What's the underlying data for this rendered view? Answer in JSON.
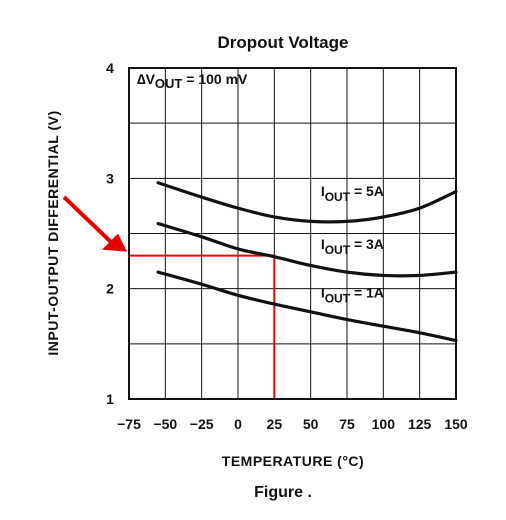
{
  "chart_data": {
    "type": "line",
    "title": "Dropout Voltage",
    "caption": "Figure .",
    "xlabel": "TEMPERATURE (°C)",
    "ylabel": "INPUT-OUTPUT DIFFERENTIAL (V)",
    "xlim": [
      -75,
      150
    ],
    "ylim": [
      1,
      4
    ],
    "x_ticks": [
      "−75",
      "−50",
      "−25",
      "0",
      "25",
      "50",
      "75",
      "100",
      "125",
      "150"
    ],
    "y_ticks": [
      "1",
      "2",
      "3",
      "4"
    ],
    "grid": true,
    "condition": {
      "delta": "∆",
      "v": "V",
      "sub": "OUT",
      "rest": " = 100 mV"
    },
    "series": [
      {
        "name": "IOUT = 5A",
        "label": {
          "i": "I",
          "sub": "OUT",
          "rest": " = 5A"
        },
        "x": [
          -55,
          -25,
          0,
          25,
          50,
          75,
          100,
          125,
          150
        ],
        "y": [
          2.96,
          2.83,
          2.73,
          2.65,
          2.61,
          2.61,
          2.65,
          2.73,
          2.88
        ]
      },
      {
        "name": "IOUT = 3A",
        "label": {
          "i": "I",
          "sub": "OUT",
          "rest": " = 3A"
        },
        "x": [
          -55,
          -25,
          0,
          25,
          50,
          75,
          100,
          125,
          150
        ],
        "y": [
          2.59,
          2.47,
          2.36,
          2.29,
          2.21,
          2.15,
          2.12,
          2.12,
          2.15
        ]
      },
      {
        "name": "IOUT = 1A",
        "label": {
          "i": "I",
          "sub": "OUT",
          "rest": " = 1A"
        },
        "x": [
          -55,
          -25,
          0,
          25,
          50,
          75,
          100,
          125,
          150
        ],
        "y": [
          2.15,
          2.04,
          1.94,
          1.86,
          1.79,
          1.72,
          1.66,
          1.6,
          1.53
        ]
      }
    ],
    "highlight": {
      "x": 25,
      "y": 2.3,
      "color": "#e80000"
    }
  }
}
